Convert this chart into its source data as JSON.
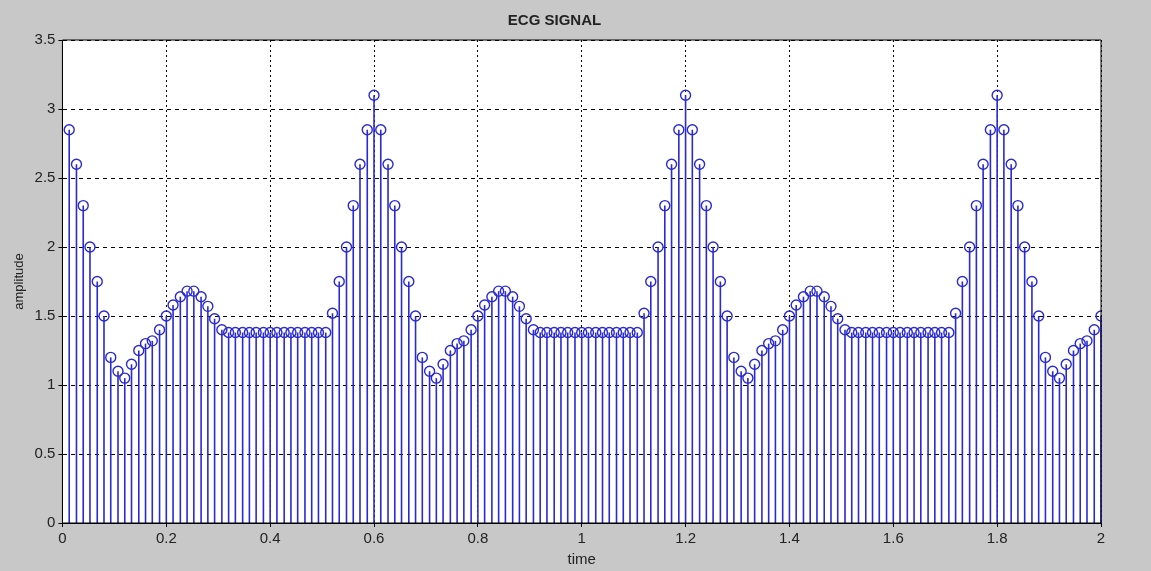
{
  "chart_data": {
    "type": "lollipop",
    "title": "ECG SIGNAL",
    "xlabel": "time",
    "ylabel": "amplitude",
    "color": "#2a2ad0",
    "marker": "circle",
    "grid": true,
    "xlim": [
      0,
      2
    ],
    "xticks": [
      0,
      0.2,
      0.4,
      0.6,
      0.8,
      1,
      1.2,
      1.4,
      1.6,
      1.8,
      2
    ],
    "ylim": [
      0,
      3.5
    ],
    "yticks": [
      0,
      0.5,
      1,
      1.5,
      2,
      2.5,
      3,
      3.5
    ],
    "x": [
      0.013,
      0.027,
      0.04,
      0.053,
      0.067,
      0.08,
      0.093,
      0.107,
      0.12,
      0.133,
      0.147,
      0.16,
      0.173,
      0.187,
      0.2,
      0.213,
      0.227,
      0.24,
      0.253,
      0.267,
      0.28,
      0.293,
      0.307,
      0.32,
      0.333,
      0.347,
      0.36,
      0.373,
      0.387,
      0.4,
      0.413,
      0.427,
      0.44,
      0.453,
      0.467,
      0.48,
      0.493,
      0.507,
      0.52,
      0.533,
      0.547,
      0.56,
      0.573,
      0.587,
      0.6,
      0.613,
      0.627,
      0.64,
      0.653,
      0.667,
      0.68,
      0.693,
      0.707,
      0.72,
      0.733,
      0.747,
      0.76,
      0.773,
      0.787,
      0.8,
      0.813,
      0.827,
      0.84,
      0.853,
      0.867,
      0.88,
      0.893,
      0.907,
      0.92,
      0.933,
      0.947,
      0.96,
      0.973,
      0.987,
      1,
      1.013,
      1.027,
      1.04,
      1.053,
      1.067,
      1.08,
      1.093,
      1.107,
      1.12,
      1.133,
      1.147,
      1.16,
      1.173,
      1.187,
      1.2,
      1.213,
      1.227,
      1.24,
      1.253,
      1.267,
      1.28,
      1.293,
      1.307,
      1.32,
      1.333,
      1.347,
      1.36,
      1.373,
      1.387,
      1.4,
      1.413,
      1.427,
      1.44,
      1.453,
      1.467,
      1.48,
      1.493,
      1.507,
      1.52,
      1.533,
      1.547,
      1.56,
      1.573,
      1.587,
      1.6,
      1.613,
      1.627,
      1.64,
      1.653,
      1.667,
      1.68,
      1.693,
      1.707,
      1.72,
      1.733,
      1.747,
      1.76,
      1.773,
      1.787,
      1.8,
      1.813,
      1.827,
      1.84,
      1.853,
      1.867,
      1.88,
      1.893,
      1.907,
      1.92,
      1.933,
      1.947,
      1.96,
      1.973,
      1.987,
      2
    ],
    "values": [
      2.85,
      2.6,
      2.3,
      2.0,
      1.75,
      1.5,
      1.2,
      1.1,
      1.05,
      1.15,
      1.25,
      1.3,
      1.32,
      1.4,
      1.5,
      1.58,
      1.64,
      1.68,
      1.68,
      1.64,
      1.57,
      1.48,
      1.4,
      1.38,
      1.38,
      1.38,
      1.38,
      1.38,
      1.38,
      1.38,
      1.38,
      1.38,
      1.38,
      1.38,
      1.38,
      1.38,
      1.38,
      1.38,
      1.52,
      1.75,
      2.0,
      2.3,
      2.6,
      2.85,
      3.1,
      2.85,
      2.6,
      2.3,
      2.0,
      1.75,
      1.5,
      1.2,
      1.1,
      1.05,
      1.15,
      1.25,
      1.3,
      1.32,
      1.4,
      1.5,
      1.58,
      1.64,
      1.68,
      1.68,
      1.64,
      1.57,
      1.48,
      1.4,
      1.38,
      1.38,
      1.38,
      1.38,
      1.38,
      1.38,
      1.38,
      1.38,
      1.38,
      1.38,
      1.38,
      1.38,
      1.38,
      1.38,
      1.38,
      1.52,
      1.75,
      2.0,
      2.3,
      2.6,
      2.85,
      3.1,
      2.85,
      2.6,
      2.3,
      2.0,
      1.75,
      1.5,
      1.2,
      1.1,
      1.05,
      1.15,
      1.25,
      1.3,
      1.32,
      1.4,
      1.5,
      1.58,
      1.64,
      1.68,
      1.68,
      1.64,
      1.57,
      1.48,
      1.4,
      1.38,
      1.38,
      1.38,
      1.38,
      1.38,
      1.38,
      1.38,
      1.38,
      1.38,
      1.38,
      1.38,
      1.38,
      1.38,
      1.38,
      1.38,
      1.52,
      1.75,
      2.0,
      2.3,
      2.6,
      2.85,
      3.1,
      2.85,
      2.6,
      2.3,
      2.0,
      1.75,
      1.5,
      1.2,
      1.1,
      1.05,
      1.15,
      1.25,
      1.3,
      1.32,
      1.4,
      1.5
    ]
  }
}
